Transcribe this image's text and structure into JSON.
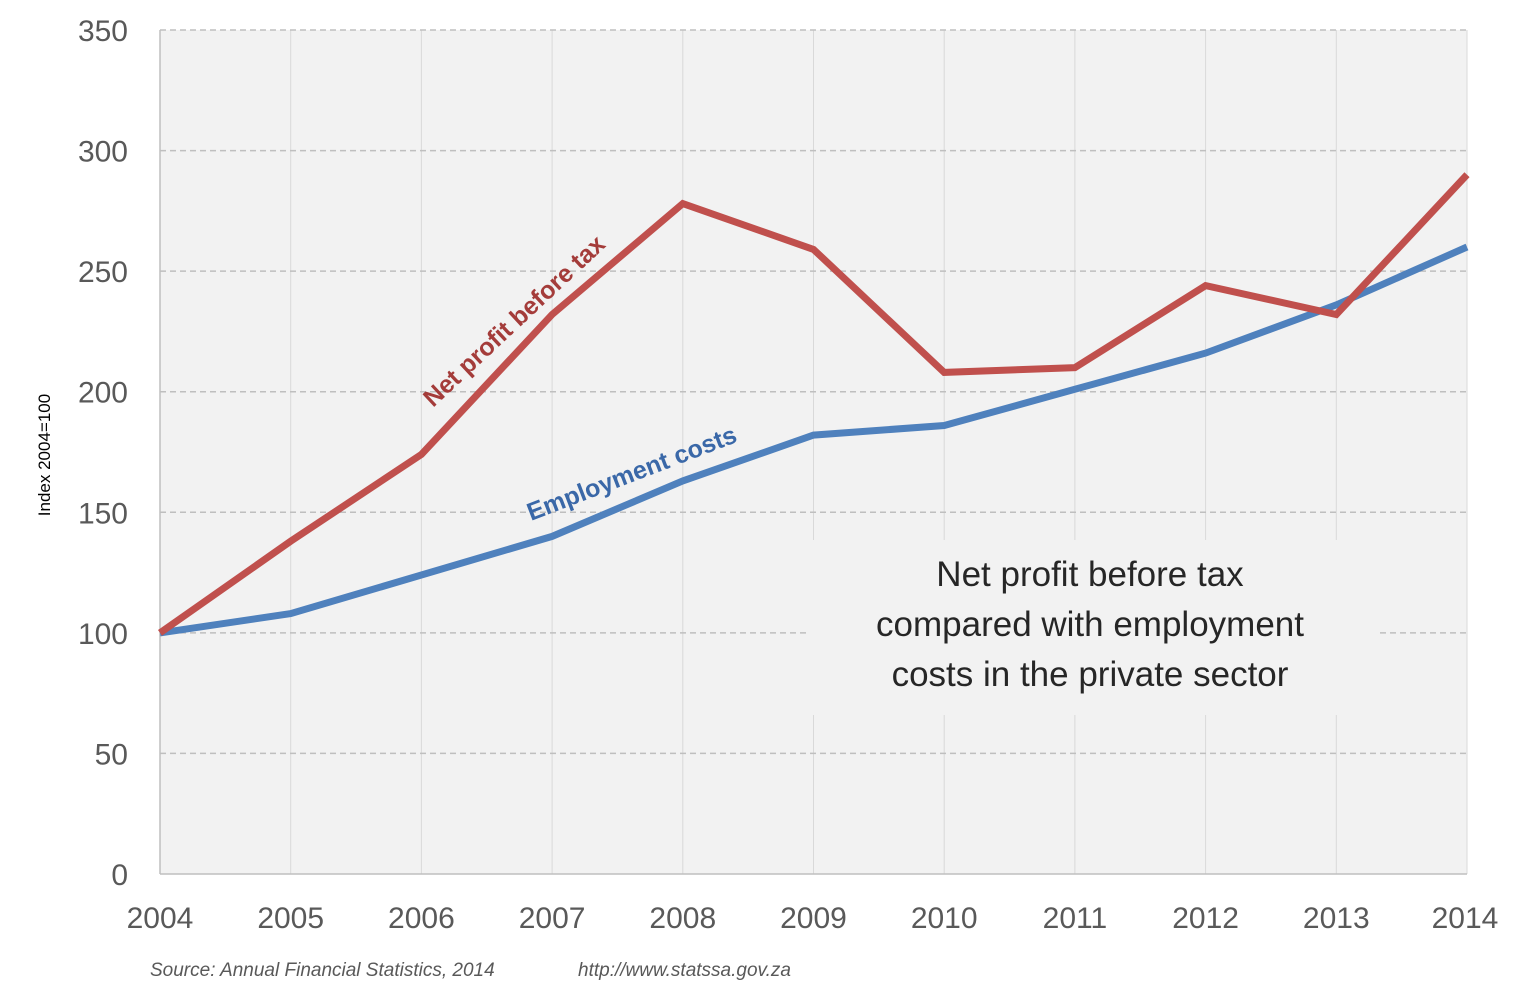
{
  "chart_data": {
    "type": "line",
    "title_lines": [
      "Net profit before tax",
      "compared with employment",
      "costs in the private sector"
    ],
    "ylabel": "Index 2004=100",
    "xlabel": "",
    "x": [
      "2004",
      "2005",
      "2006",
      "2007",
      "2008",
      "2009",
      "2010",
      "2011",
      "2012",
      "2013",
      "2014"
    ],
    "ylim": [
      0,
      350
    ],
    "yticks": [
      0,
      50,
      100,
      150,
      200,
      250,
      300,
      350
    ],
    "grid": "horizontal dashed",
    "series": [
      {
        "name": "Net profit before tax",
        "color": "#c0504d",
        "values": [
          100,
          138,
          174,
          232,
          278,
          259,
          208,
          210,
          244,
          232,
          290
        ]
      },
      {
        "name": "Employment costs",
        "color": "#4f81bd",
        "values": [
          100,
          108,
          124,
          140,
          163,
          182,
          186,
          201,
          216,
          236,
          260
        ]
      }
    ]
  },
  "labels": {
    "net_profit": "Net profit before tax",
    "employment": "Employment costs"
  },
  "footer": {
    "source": "Source: Annual Financial Statistics, 2014",
    "url": "http://www.statssa.gov.za"
  },
  "colors": {
    "plot_bg": "#f2f2f2",
    "grid": "#bfbfbf",
    "net_profit": "#c0504d",
    "employment": "#4f81bd",
    "net_profit_label": "#a43c3a",
    "employment_label": "#3a68a8"
  }
}
